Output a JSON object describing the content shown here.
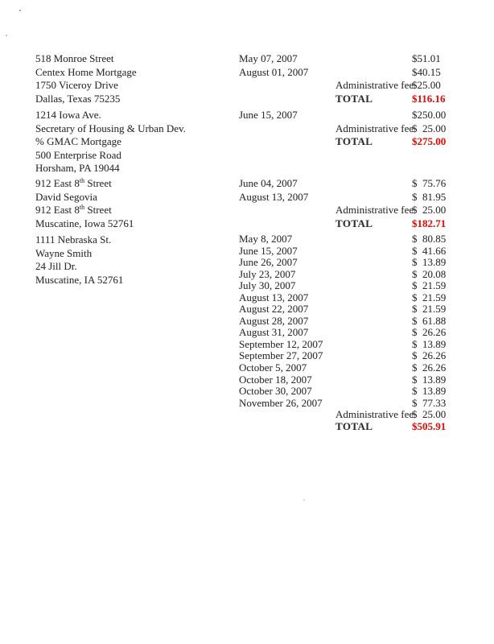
{
  "page": {
    "background": "#ffffff",
    "text_color": "#2e2e2e",
    "total_red": "#e8120a"
  },
  "labels": {
    "admin_fee": "Administrative fee",
    "total": "TOTAL"
  },
  "blocks": [
    {
      "address": [
        "518 Monroe Street",
        "Centex Home Mortgage",
        "1750 Viceroy Drive",
        "Dallas, Texas 75235"
      ],
      "payments": [
        {
          "date": "May 07, 2007",
          "amount": "$51.01"
        },
        {
          "date": "August 01, 2007",
          "amount": "$40.15"
        }
      ],
      "admin_fee_amount": "$25.00",
      "total_amount": "$116.16"
    },
    {
      "address": [
        "1214 Iowa Ave.",
        "Secretary of Housing & Urban Dev.",
        "% GMAC Mortgage",
        "500 Enterprise Road",
        "Horsham, PA 19044"
      ],
      "payments": [
        {
          "date": "June 15, 2007",
          "amount": "$250.00"
        }
      ],
      "admin_fee_amount": "$  25.00",
      "total_amount": "$275.00"
    },
    {
      "address": [
        [
          "912 East 8",
          {
            "sup": "th"
          },
          " Street"
        ],
        "David Segovia",
        [
          "912 East 8",
          {
            "sup": "th"
          },
          " Street"
        ],
        "Muscatine, Iowa 52761"
      ],
      "payments": [
        {
          "date": "June 04, 2007",
          "amount": "$  75.76"
        },
        {
          "date": "August 13, 2007",
          "amount": "$  81.95"
        }
      ],
      "admin_fee_amount": "$  25.00",
      "total_amount": "$182.71"
    },
    {
      "address": [
        "1111 Nebraska St.",
        "Wayne Smith",
        "24 Jill Dr.",
        "Muscatine, IA 52761"
      ],
      "payments": [
        {
          "date": "May 8, 2007",
          "amount": "$  80.85"
        },
        {
          "date": "June 15, 2007",
          "amount": "$  41.66"
        },
        {
          "date": "June 26, 2007",
          "amount": "$  13.89"
        },
        {
          "date": "July 23, 2007",
          "amount": "$  20.08"
        },
        {
          "date": "July 30, 2007",
          "amount": "$  21.59"
        },
        {
          "date": "August 13, 2007",
          "amount": "$  21.59"
        },
        {
          "date": "August 22, 2007",
          "amount": "$  21.59"
        },
        {
          "date": "August 28, 2007",
          "amount": "$  61.88"
        },
        {
          "date": "August 31, 2007",
          "amount": "$  26.26"
        },
        {
          "date": "September 12, 2007",
          "amount": "$  13.89"
        },
        {
          "date": "September 27, 2007",
          "amount": "$  26.26"
        },
        {
          "date": "October 5, 2007",
          "amount": "$  26.26"
        },
        {
          "date": "October 18, 2007",
          "amount": "$  13.89"
        },
        {
          "date": "October 30, 2007",
          "amount": "$  13.89"
        },
        {
          "date": "November 26, 2007",
          "amount": "$  77.33"
        }
      ],
      "admin_fee_amount": "$  25.00",
      "total_amount": "$505.91"
    }
  ]
}
